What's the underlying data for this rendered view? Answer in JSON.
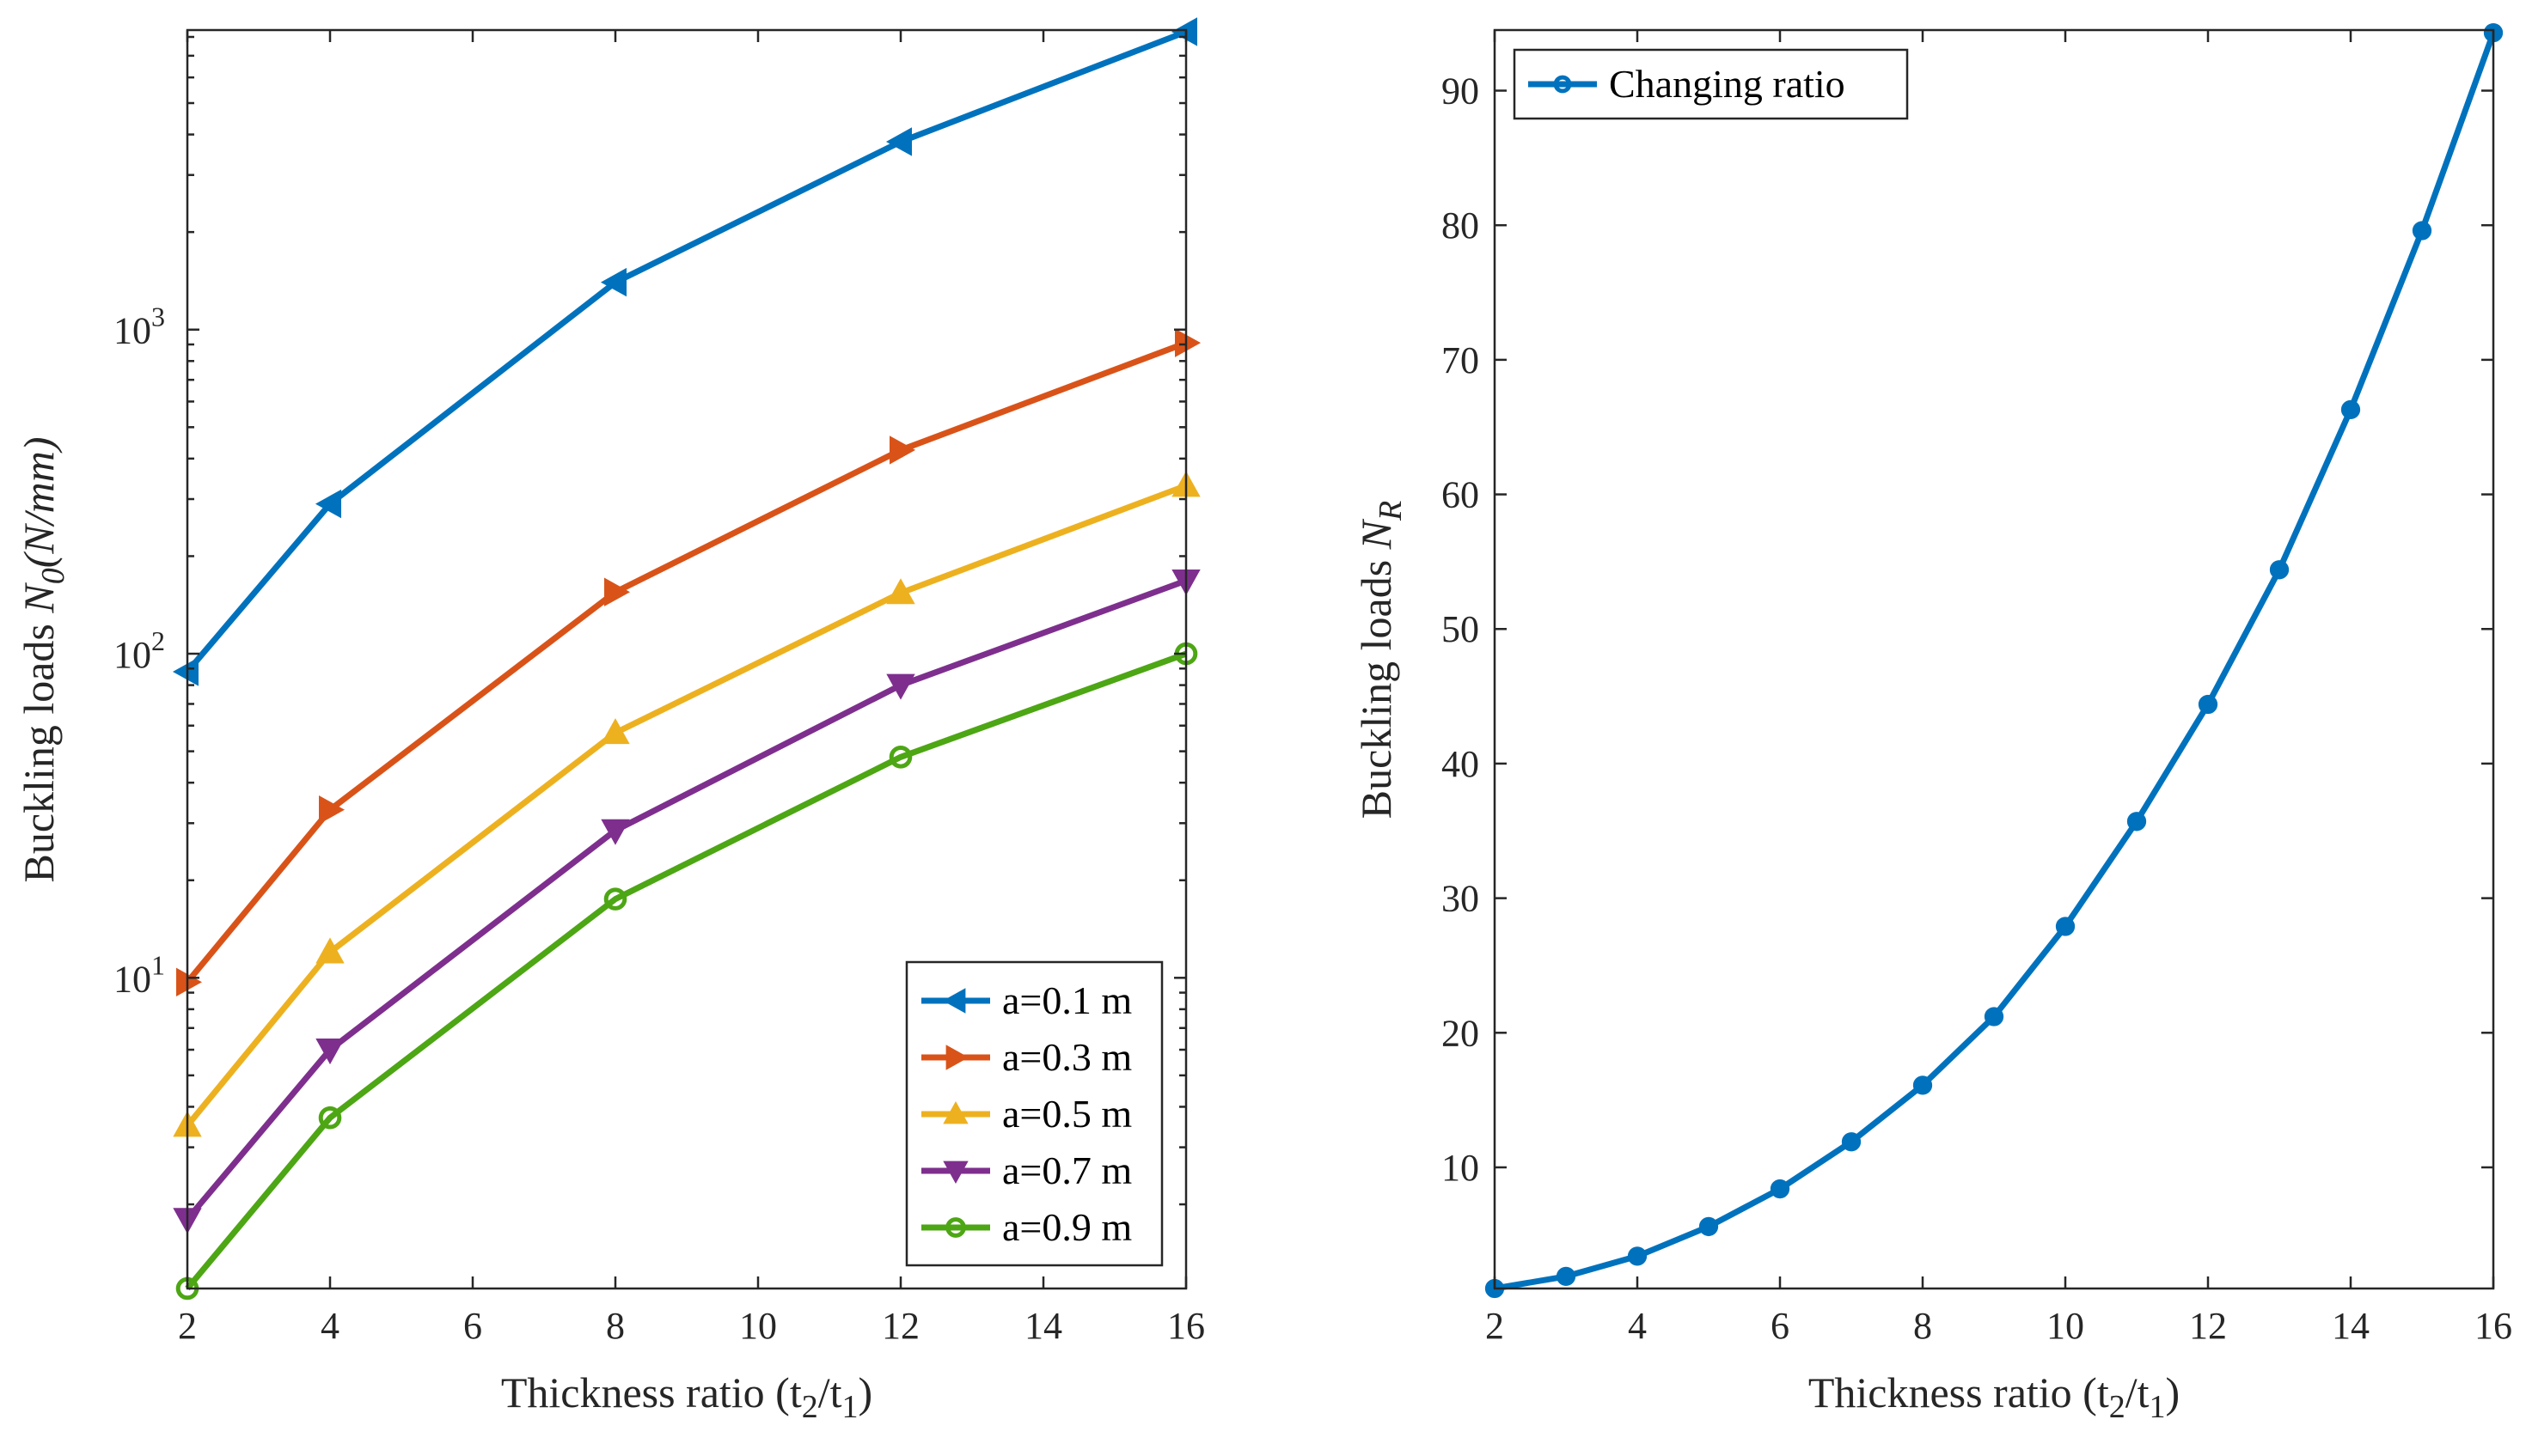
{
  "chart_data": [
    {
      "type": "line",
      "yscale": "log",
      "x": [
        2,
        4,
        8,
        12,
        16
      ],
      "xlabel": "Thickness ratio (t2/t1)",
      "ylabel": "Buckling loads N0(N/mm)",
      "xlim": [
        2,
        16
      ],
      "ylim": [
        1.1,
        8400
      ],
      "xticks": [
        2,
        4,
        6,
        8,
        10,
        12,
        14,
        16
      ],
      "yticks": [
        {
          "value": 10,
          "base": "10",
          "exp": "1"
        },
        {
          "value": 100,
          "base": "10",
          "exp": "2"
        },
        {
          "value": 1000,
          "base": "10",
          "exp": "3"
        }
      ],
      "legend": "bottom-right",
      "series": [
        {
          "name": "a=0.1 m",
          "color": "#0072BD",
          "marker": "triangle-left",
          "values": [
            88,
            290,
            1400,
            3800,
            8300
          ]
        },
        {
          "name": "a=0.3 m",
          "color": "#D95319",
          "marker": "triangle-right",
          "values": [
            9.7,
            33,
            155,
            425,
            910
          ]
        },
        {
          "name": "a=0.5 m",
          "color": "#EDB120",
          "marker": "triangle-up",
          "values": [
            3.5,
            12,
            57,
            154,
            330
          ]
        },
        {
          "name": "a=0.7 m",
          "color": "#7E2F8E",
          "marker": "triangle-down",
          "values": [
            1.8,
            6.0,
            28.5,
            80,
            168
          ]
        },
        {
          "name": "a=0.9 m",
          "color": "#4DA614",
          "marker": "circle",
          "values": [
            1.1,
            3.7,
            17.5,
            48,
            100
          ]
        }
      ]
    },
    {
      "type": "line",
      "yscale": "linear",
      "x": [
        2,
        3,
        4,
        5,
        6,
        7,
        8,
        9,
        10,
        11,
        12,
        13,
        14,
        15,
        16
      ],
      "xlabel": "Thickness ratio (t2/t1)",
      "ylabel": "Buckling loads NR",
      "xlim": [
        2,
        16
      ],
      "ylim": [
        1,
        94.5
      ],
      "xticks": [
        2,
        4,
        6,
        8,
        10,
        12,
        14,
        16
      ],
      "yticks": [
        10,
        20,
        30,
        40,
        50,
        60,
        70,
        80,
        90
      ],
      "legend": "top-left",
      "series": [
        {
          "name": "Changing ratio",
          "color": "#0072BD",
          "marker": "circle",
          "values": [
            1,
            1.9,
            3.4,
            5.6,
            8.4,
            11.9,
            16.1,
            21.2,
            27.9,
            35.7,
            44.4,
            54.4,
            66.3,
            79.6,
            94.3
          ]
        }
      ]
    }
  ],
  "labels": {
    "left_xlabel_main": "Thickness ratio (t",
    "left_xlabel_sub1": "2",
    "left_xlabel_mid": "/t",
    "left_xlabel_sub2": "1",
    "left_xlabel_end": ")",
    "left_ylabel_main": "Buckling loads ",
    "left_ylabel_sym": "N",
    "left_ylabel_sub": "0",
    "left_ylabel_unit": "(N/mm)",
    "right_xlabel_main": "Thickness ratio (t",
    "right_xlabel_sub1": "2",
    "right_xlabel_mid": "/t",
    "right_xlabel_sub2": "1",
    "right_xlabel_end": ")",
    "right_ylabel_main": "Buckling loads ",
    "right_ylabel_sym": "N",
    "right_ylabel_sub": "R"
  }
}
